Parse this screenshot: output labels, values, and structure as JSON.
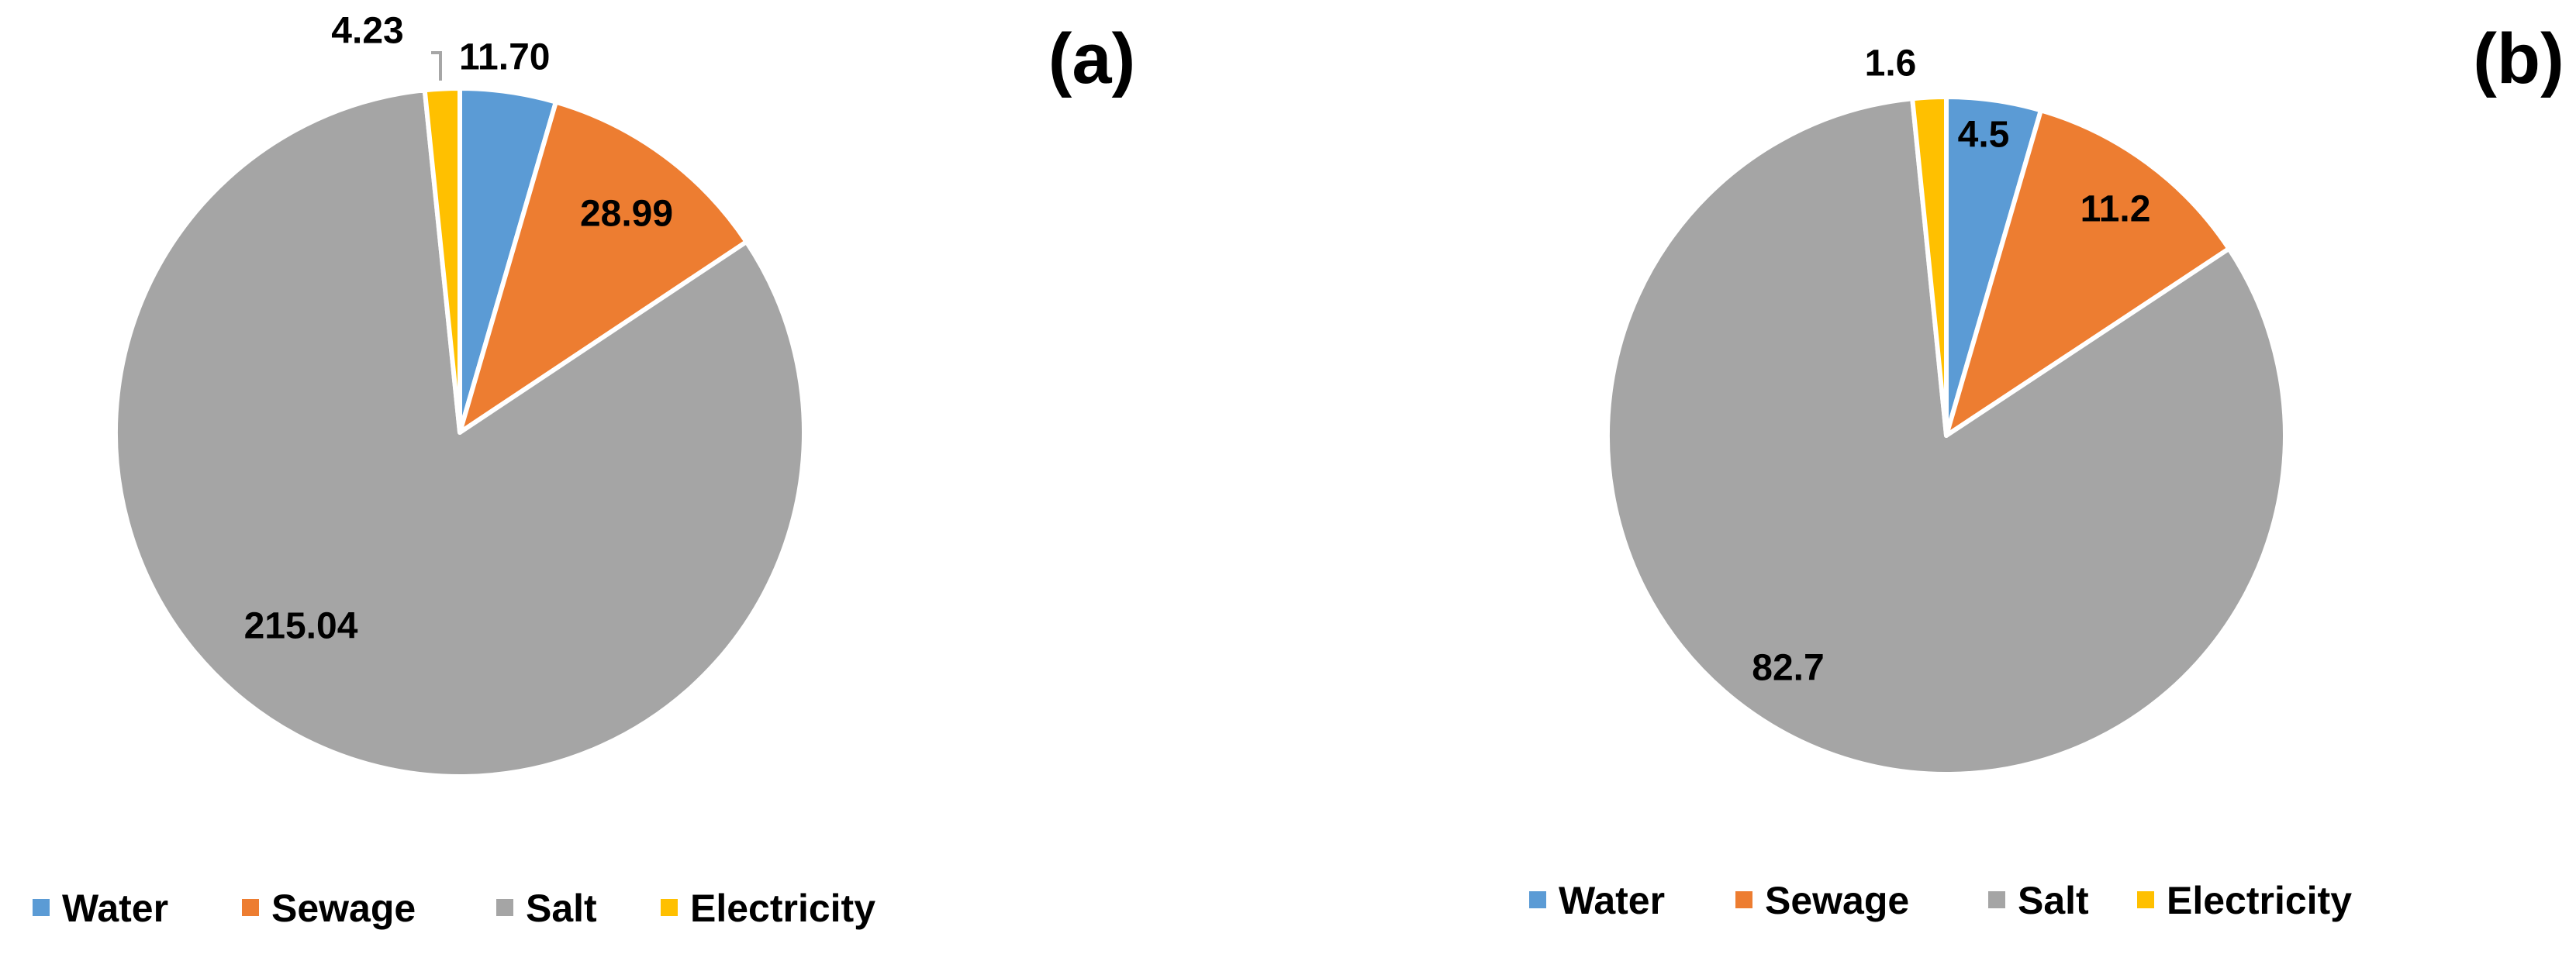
{
  "chart_data": [
    {
      "type": "pie",
      "panel_label": "(a)",
      "categories": [
        "Water",
        "Sewage",
        "Salt",
        "Electricity"
      ],
      "values": [
        11.7,
        28.99,
        215.04,
        4.23
      ],
      "value_labels": [
        "11.70",
        "28.99",
        "215.04",
        "4.23"
      ],
      "colors": [
        "#5b9bd5",
        "#ed7d31",
        "#a5a5a5",
        "#ffc000"
      ],
      "start": "12 o'clock, clockwise",
      "legend": [
        "Water",
        "Sewage",
        "Salt",
        "Electricity"
      ],
      "legend_position": "bottom"
    },
    {
      "type": "pie",
      "panel_label": "(b)",
      "categories": [
        "Water",
        "Sewage",
        "Salt",
        "Electricity"
      ],
      "values": [
        4.5,
        11.2,
        82.7,
        1.6
      ],
      "value_labels": [
        "4.5",
        "11.2",
        "82.7",
        "1.6"
      ],
      "colors": [
        "#5b9bd5",
        "#ed7d31",
        "#a5a5a5",
        "#ffc000"
      ],
      "start": "12 o'clock, clockwise",
      "legend": [
        "Water",
        "Sewage",
        "Salt",
        "Electricity"
      ],
      "legend_position": "bottom"
    }
  ]
}
